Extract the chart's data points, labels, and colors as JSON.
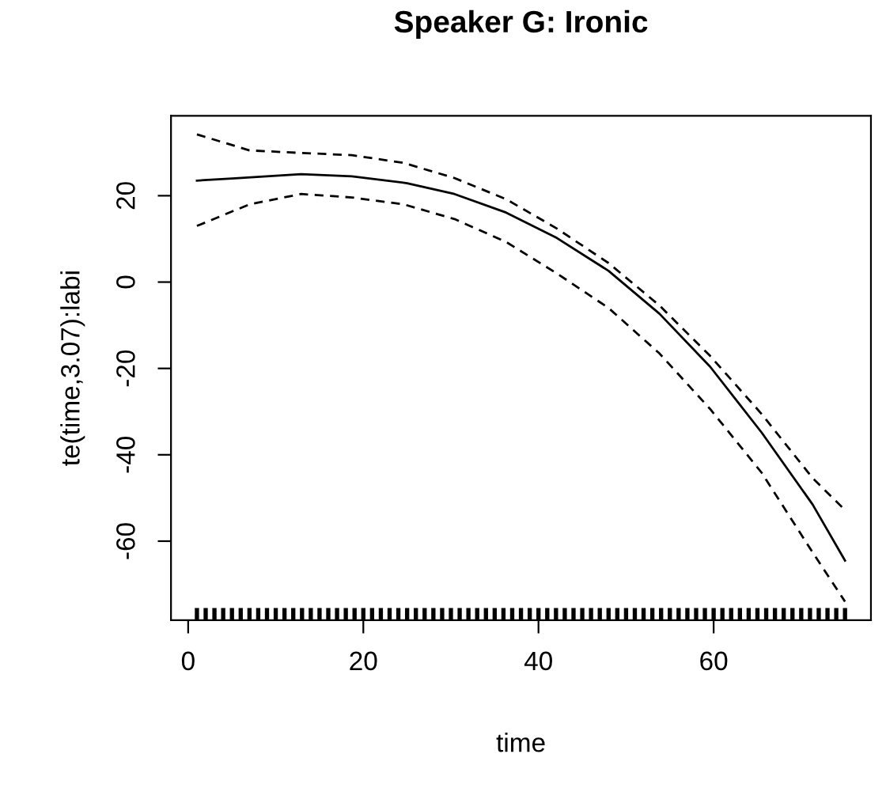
{
  "chart_data": {
    "type": "line",
    "title": "Speaker G: Ironic",
    "xlabel": "time",
    "ylabel": "te(time,3.07):labi",
    "xlim": [
      -1.96,
      77.96
    ],
    "ylim": [
      -78.3,
      38.5
    ],
    "xticks": [
      0,
      20,
      40,
      60
    ],
    "yticks": [
      -60,
      -40,
      -20,
      0,
      20
    ],
    "grid": false,
    "legend": false,
    "series": [
      {
        "color": "#000000",
        "line_style": "solid",
        "x": [
          1,
          5,
          12.9,
          18.7,
          25,
          30.4,
          36.3,
          42.1,
          48,
          53.8,
          59.6,
          65.5,
          71.3,
          75
        ],
        "values": [
          23.5,
          24,
          25,
          24.5,
          22.9,
          20.4,
          16.1,
          10.2,
          2.6,
          -7.3,
          -19.6,
          -34.9,
          -51.5,
          -64.5
        ]
      },
      {
        "color": "#000000",
        "line_style": "dashed",
        "x": [
          1,
          7,
          12.9,
          18.7,
          24.6,
          30.4,
          36.3,
          42.1,
          48,
          53.8,
          59.6,
          65.5,
          71.3,
          75
        ],
        "values": [
          34.2,
          30.5,
          29.9,
          29.4,
          27.6,
          24.1,
          19.2,
          12.4,
          4.4,
          -5.4,
          -17.1,
          -30.6,
          -45.4,
          -52.8
        ]
      },
      {
        "color": "#000000",
        "line_style": "dashed",
        "x": [
          1,
          7,
          12.9,
          18.7,
          24.6,
          30.4,
          36.3,
          42.1,
          48,
          53.8,
          59.6,
          65.5,
          71.3,
          75
        ],
        "values": [
          13,
          18,
          20.4,
          19.6,
          18,
          14.6,
          9.3,
          2,
          -6,
          -16.5,
          -29.4,
          -44.2,
          -62.6,
          -74
        ]
      },
      {
        "type": "scatter",
        "color": "#000000",
        "x": [
          1,
          2,
          3,
          4,
          5,
          6,
          7,
          8,
          9,
          10,
          11,
          12,
          13,
          14,
          15,
          16,
          17,
          18,
          19,
          20,
          21,
          22,
          23,
          24,
          25,
          26,
          27,
          28,
          29,
          30,
          31,
          32,
          33,
          34,
          35,
          36,
          37,
          38,
          39,
          40,
          41,
          42,
          43,
          44,
          45,
          46,
          47,
          48,
          49,
          50,
          51,
          52,
          53,
          54,
          55,
          56,
          57,
          58,
          59,
          60,
          61,
          62,
          63,
          64,
          65,
          66,
          67,
          68,
          69,
          70,
          71,
          72,
          73,
          74,
          75
        ],
        "values": [
          -77,
          -77,
          -77,
          -77,
          -77,
          -77,
          -77,
          -77,
          -77,
          -77,
          -77,
          -77,
          -77,
          -77,
          -77,
          -77,
          -77,
          -77,
          -77,
          -77,
          -77,
          -77,
          -77,
          -77,
          -77,
          -77,
          -77,
          -77,
          -77,
          -77,
          -77,
          -77,
          -77,
          -77,
          -77,
          -77,
          -77,
          -77,
          -77,
          -77,
          -77,
          -77,
          -77,
          -77,
          -77,
          -77,
          -77,
          -77,
          -77,
          -77,
          -77,
          -77,
          -77,
          -77,
          -77,
          -77,
          -77,
          -77,
          -77,
          -77,
          -77,
          -77,
          -77,
          -77,
          -77,
          -77,
          -77,
          -77,
          -77,
          -77,
          -77,
          -77,
          -77,
          -77,
          -77
        ]
      }
    ]
  }
}
